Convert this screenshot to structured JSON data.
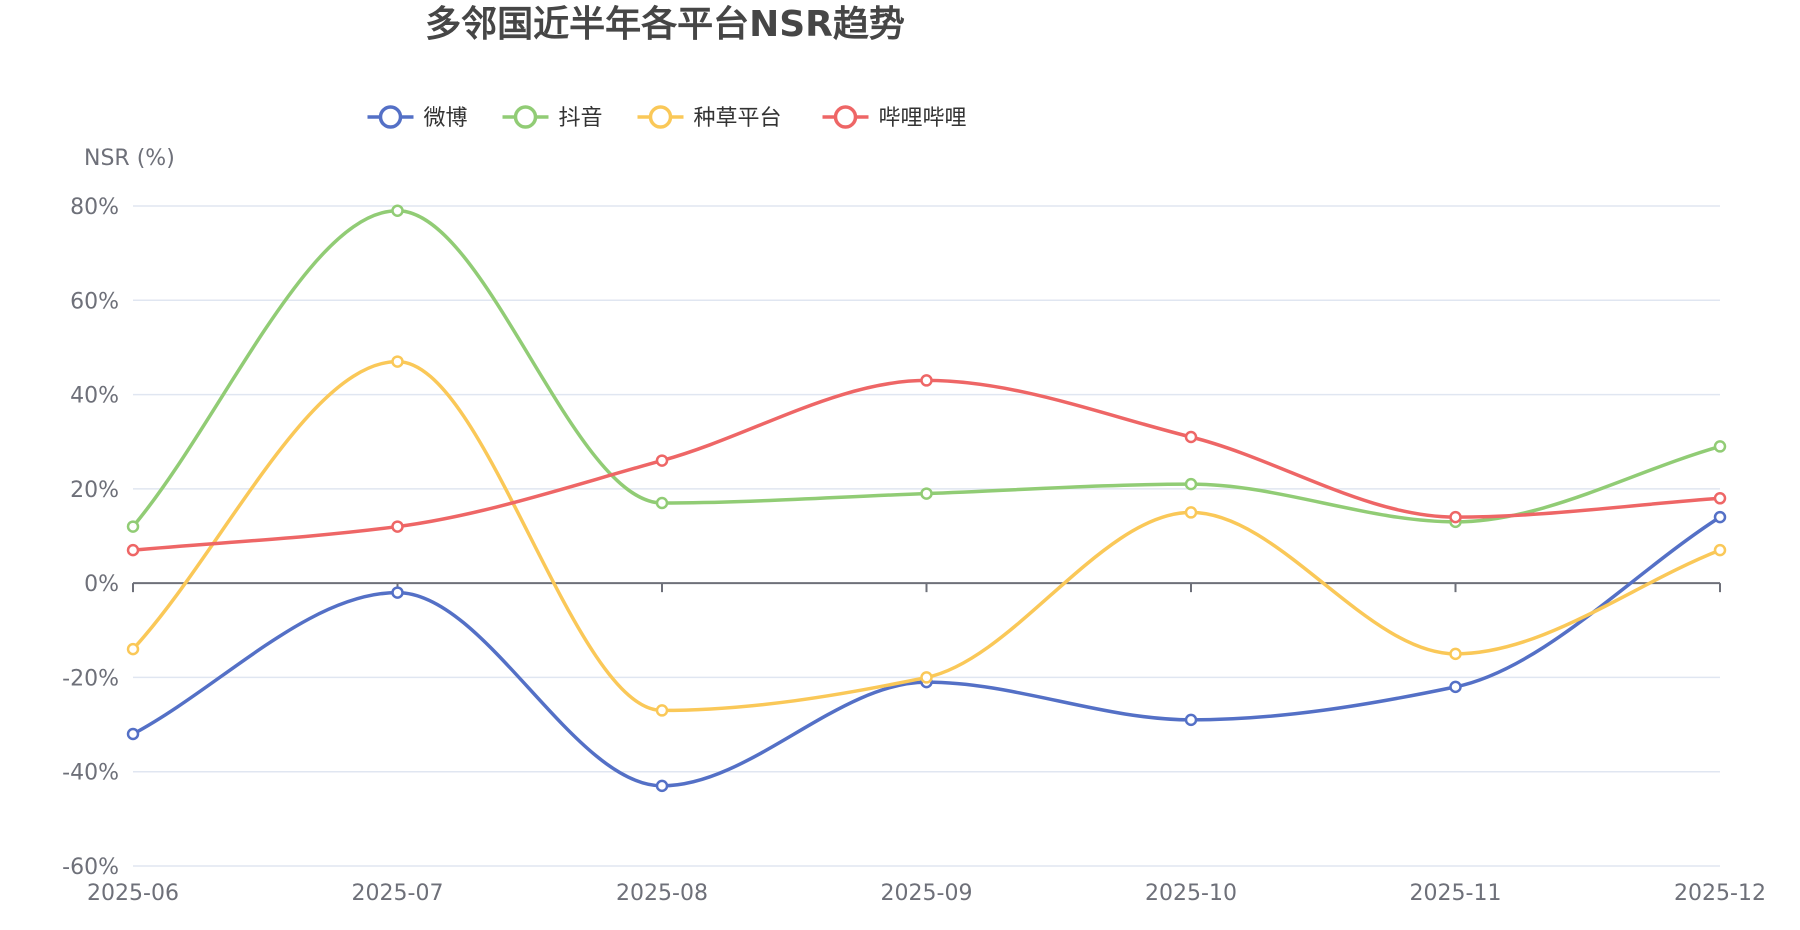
{
  "chart_data": {
    "type": "line",
    "title": "多邻国近半年各平台NSR趋势",
    "ylabel": "NSR (%)",
    "xlabel": "",
    "categories": [
      "2025-06",
      "2025-07",
      "2025-08",
      "2025-09",
      "2025-10",
      "2025-11",
      "2025-12"
    ],
    "ylim": [
      -60,
      80
    ],
    "yticks": [
      80,
      60,
      40,
      20,
      0,
      -20,
      -40,
      -60
    ],
    "ytick_labels": [
      "80%",
      "60%",
      "40%",
      "20%",
      "0%",
      "-20%",
      "-40%",
      "-60%"
    ],
    "smooth": true,
    "grid": true,
    "legend_position": "top-center",
    "series": [
      {
        "name": "微博",
        "color": "#5470c6",
        "values": [
          -32,
          -2,
          -43,
          -21,
          -29,
          -22,
          14
        ]
      },
      {
        "name": "抖音",
        "color": "#91cc75",
        "values": [
          12,
          79,
          17,
          19,
          21,
          13,
          29
        ]
      },
      {
        "name": "种草平台",
        "color": "#fac858",
        "values": [
          -14,
          47,
          -27,
          -20,
          15,
          -15,
          7
        ]
      },
      {
        "name": "哔哩哔哩",
        "color": "#ee6666",
        "values": [
          7,
          12,
          26,
          43,
          31,
          14,
          18
        ]
      }
    ]
  }
}
